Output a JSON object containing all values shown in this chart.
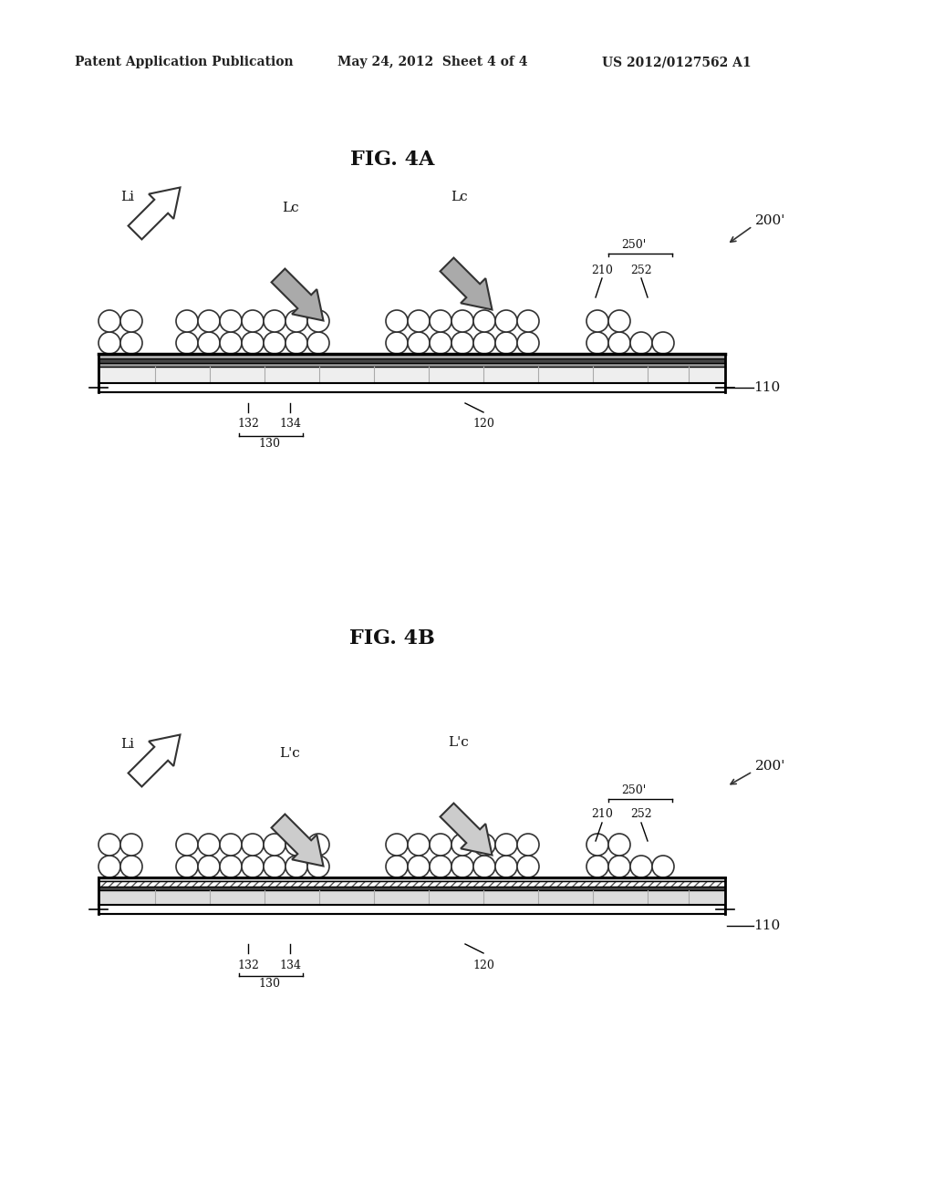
{
  "bg_color": "#ffffff",
  "header_left": "Patent Application Publication",
  "header_mid": "May 24, 2012  Sheet 4 of 4",
  "header_right": "US 2012/0127562 A1",
  "fig4a_title": "FIG. 4A",
  "fig4b_title": "FIG. 4B",
  "label_200prime": "200'",
  "label_250prime": "250'",
  "label_210": "210",
  "label_252": "252",
  "label_110": "110",
  "label_132": "132",
  "label_134": "134",
  "label_130": "130",
  "label_120": "120",
  "label_Li": "Li",
  "label_Lc": "Lc",
  "label_Lprimec": "L'c"
}
